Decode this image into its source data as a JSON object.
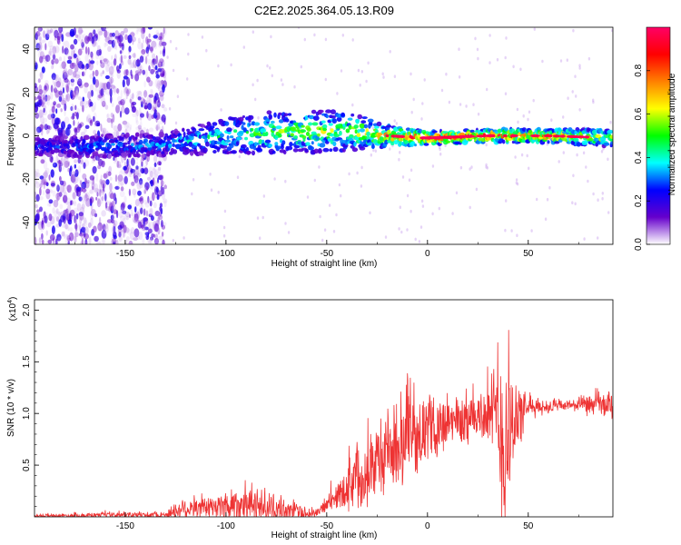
{
  "title": "C2E2.2025.364.05.13.R09",
  "chart_data": [
    {
      "type": "heatmap",
      "xlabel": "Height of straight line (km)",
      "ylabel": "Frequency (Hz)",
      "xlim": [
        -195,
        92
      ],
      "ylim": [
        -50,
        50
      ],
      "xticks": [
        -150,
        -100,
        -50,
        0,
        50
      ],
      "yticks": [
        -40,
        -20,
        0,
        20,
        40
      ],
      "colorbar": {
        "label": "Normalized spectral amplitude",
        "range": [
          0,
          1
        ],
        "ticks": [
          "0.0",
          "0.2",
          "0.4",
          "0.6",
          "0.8"
        ],
        "colors": [
          "#ffffff",
          "#6600cc",
          "#0000ff",
          "#00ffff",
          "#00ff00",
          "#ffff00",
          "#ff8000",
          "#ff0000",
          "#ff0066"
        ]
      },
      "noise_region_x": [
        -195,
        -130
      ],
      "band_profile": [
        {
          "x": -195,
          "y": -5,
          "halfwidth": 4,
          "amp": 0.25
        },
        {
          "x": -170,
          "y": -5,
          "halfwidth": 5,
          "amp": 0.3
        },
        {
          "x": -130,
          "y": -4,
          "halfwidth": 5,
          "amp": 0.35
        },
        {
          "x": -100,
          "y": 0,
          "halfwidth": 8,
          "amp": 0.45
        },
        {
          "x": -70,
          "y": 2,
          "halfwidth": 10,
          "amp": 0.55
        },
        {
          "x": -40,
          "y": 2,
          "halfwidth": 9,
          "amp": 0.55
        },
        {
          "x": -20,
          "y": 0,
          "halfwidth": 5,
          "amp": 0.7
        },
        {
          "x": 0,
          "y": -1,
          "halfwidth": 3,
          "amp": 0.9
        },
        {
          "x": 30,
          "y": 0,
          "halfwidth": 3,
          "amp": 0.85
        },
        {
          "x": 60,
          "y": 0,
          "halfwidth": 3,
          "amp": 0.8
        },
        {
          "x": 92,
          "y": -1,
          "halfwidth": 4,
          "amp": 0.6
        }
      ]
    },
    {
      "type": "line",
      "xlabel": "Height of straight line (km)",
      "ylabel": "SNR (10 * v/v)",
      "yscale_label_base": "(x10",
      "yscale_label_exp": "4",
      "yscale_label_end": ")",
      "xlim": [
        -195,
        92
      ],
      "ylim": [
        0,
        2.1
      ],
      "xticks": [
        -150,
        -100,
        -50,
        0,
        50
      ],
      "yticks": [
        0.5,
        1.0,
        1.5,
        2.0
      ],
      "ytick_labels": [
        "0.5",
        "1.0",
        "1.5",
        "2.0"
      ],
      "color": "#ee3333",
      "envelope": [
        {
          "x": -195,
          "base": 0.01,
          "spread": 0.02
        },
        {
          "x": -130,
          "base": 0.02,
          "spread": 0.04
        },
        {
          "x": -122,
          "base": 0.08,
          "spread": 0.15
        },
        {
          "x": -110,
          "base": 0.08,
          "spread": 0.12
        },
        {
          "x": -95,
          "base": 0.12,
          "spread": 0.25
        },
        {
          "x": -80,
          "base": 0.1,
          "spread": 0.2
        },
        {
          "x": -70,
          "base": 0.06,
          "spread": 0.12
        },
        {
          "x": -55,
          "base": 0.03,
          "spread": 0.05
        },
        {
          "x": -45,
          "base": 0.2,
          "spread": 0.15
        },
        {
          "x": -35,
          "base": 0.4,
          "spread": 0.4
        },
        {
          "x": -20,
          "base": 0.6,
          "spread": 0.5
        },
        {
          "x": -10,
          "base": 0.75,
          "spread": 0.45
        },
        {
          "x": 0,
          "base": 0.85,
          "spread": 0.35
        },
        {
          "x": 10,
          "base": 0.9,
          "spread": 0.35
        },
        {
          "x": 20,
          "base": 0.95,
          "spread": 0.3
        },
        {
          "x": 30,
          "base": 1.0,
          "spread": 0.35
        },
        {
          "x": 35,
          "base": 0.9,
          "spread": 0.8
        },
        {
          "x": 38,
          "base": 0.7,
          "spread": 1.3
        },
        {
          "x": 42,
          "base": 0.9,
          "spread": 0.6
        },
        {
          "x": 50,
          "base": 1.05,
          "spread": 0.12
        },
        {
          "x": 70,
          "base": 1.08,
          "spread": 0.06
        },
        {
          "x": 92,
          "base": 1.08,
          "spread": 0.2
        }
      ]
    }
  ]
}
